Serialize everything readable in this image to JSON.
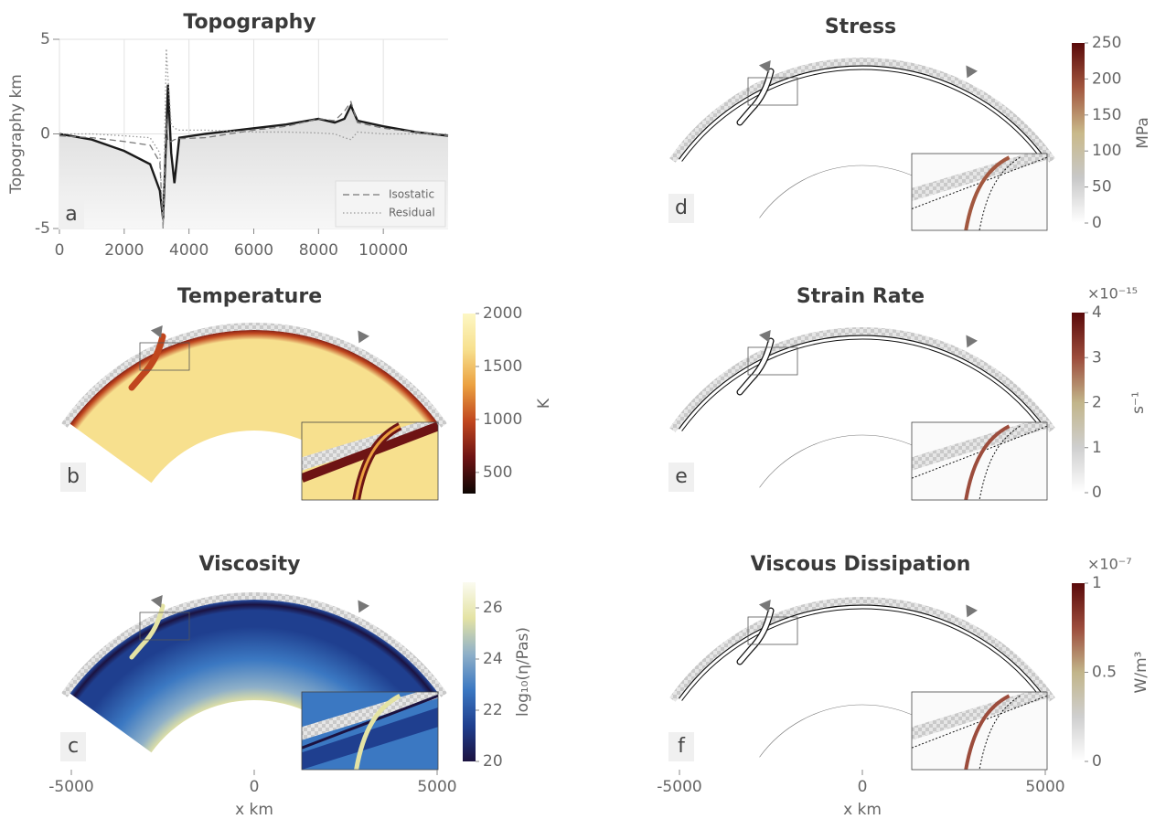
{
  "chart_data": [
    {
      "type": "line",
      "title": "Topography",
      "panel_label": "a",
      "y_label": "Topography km",
      "x": [
        0,
        1000,
        2000,
        2800,
        3100,
        3200,
        3300,
        3350,
        3450,
        3550,
        3700,
        4500,
        6000,
        7000,
        8000,
        8500,
        8800,
        9000,
        9200,
        10000,
        11000,
        12000
      ],
      "series": [
        {
          "color": "#1a1a1a",
          "dash": "solid",
          "values": [
            0,
            -0.3,
            -0.9,
            -1.6,
            -3,
            -4.5,
            0,
            2.6,
            -1,
            -2.6,
            -0.2,
            0,
            0.3,
            0.5,
            0.8,
            0.6,
            0.8,
            1.5,
            0.7,
            0.4,
            0.1,
            -0.1
          ]
        },
        {
          "name": "Isostatic",
          "color": "#777777",
          "dash": "dashed",
          "values": [
            -0.1,
            -0.2,
            -0.4,
            -0.6,
            -1.5,
            -5,
            0.8,
            -0.4,
            -0.4,
            -0.3,
            -0.25,
            -0.2,
            0.2,
            0.4,
            0.8,
            0.7,
            1.2,
            1.7,
            0.6,
            0.3,
            0.1,
            -0.1
          ]
        },
        {
          "name": "Residual",
          "color": "#999999",
          "dash": "dotted",
          "values": [
            0,
            0,
            -0.1,
            -0.2,
            -1,
            -5,
            4.5,
            3,
            0.5,
            0.3,
            0.2,
            0.2,
            0.1,
            0.1,
            0.05,
            0,
            -0.2,
            -0.3,
            0.1,
            0,
            0,
            0
          ]
        }
      ],
      "xlim": [
        0,
        12000
      ],
      "xticks": [
        0,
        2000,
        4000,
        6000,
        8000,
        10000
      ],
      "ylim": [
        -5,
        5
      ],
      "yticks": [
        -5,
        0,
        5
      ],
      "grid": true,
      "legend": "lower right"
    },
    {
      "type": "field",
      "title": "Temperature",
      "panel_label": "b",
      "colorbar": {
        "label": "K",
        "lim": [
          300,
          2000
        ],
        "ticks": [
          500,
          1000,
          1500,
          2000
        ],
        "colors": [
          "#0d0603",
          "#6e1414",
          "#c0461e",
          "#eba040",
          "#f7e08e",
          "#fdf7c4"
        ]
      }
    },
    {
      "type": "field",
      "title": "Viscosity",
      "panel_label": "c",
      "colorbar": {
        "label": "log₁₀(η/Pas)",
        "lim": [
          20,
          27
        ],
        "ticks": [
          20,
          22,
          24,
          26
        ],
        "colors": [
          "#1b1240",
          "#1f3f8f",
          "#3b78c2",
          "#8fb0c8",
          "#e4e3a4",
          "#fbfbf0"
        ]
      },
      "xlim": [
        -5000,
        5000
      ],
      "xticks": [
        -5000,
        0,
        5000
      ],
      "x_label": "x km"
    },
    {
      "type": "field",
      "title": "Stress",
      "panel_label": "d",
      "colorbar": {
        "label": "MPa",
        "lim": [
          0,
          250
        ],
        "ticks": [
          0,
          50,
          100,
          150,
          200,
          250
        ],
        "colors": [
          "#ffffff",
          "#c8c8c8",
          "#c9b98a",
          "#a2573f",
          "#5a0a0a"
        ]
      }
    },
    {
      "type": "field",
      "title": "Strain Rate",
      "panel_label": "e",
      "colorbar": {
        "label": "s⁻¹",
        "multiplier": "×10⁻¹⁵",
        "lim": [
          0,
          4
        ],
        "ticks": [
          0,
          1,
          2,
          3,
          4
        ],
        "colors": [
          "#ffffff",
          "#cfcfcf",
          "#c2b58a",
          "#9c4c3c",
          "#5a0a0a"
        ]
      }
    },
    {
      "type": "field",
      "title": "Viscous Dissipation",
      "panel_label": "f",
      "colorbar": {
        "label": "W/m³",
        "multiplier": "×10⁻⁷",
        "lim": [
          0,
          1
        ],
        "ticks": [
          0,
          0.5,
          1
        ],
        "colors": [
          "#ffffff",
          "#cfcfcf",
          "#c2b58a",
          "#9c4c3c",
          "#5a0a0a"
        ]
      },
      "xlim": [
        -5000,
        5000
      ],
      "xticks": [
        -5000,
        0,
        5000
      ],
      "x_label": "x km"
    }
  ]
}
